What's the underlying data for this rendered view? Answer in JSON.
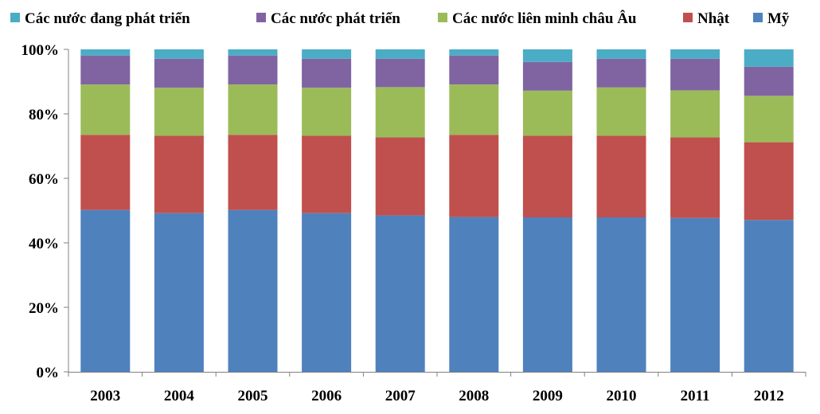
{
  "chart_data": {
    "type": "bar",
    "stacked": true,
    "percent_stacked": true,
    "title": "",
    "xlabel": "",
    "ylabel": "",
    "categories": [
      "2003",
      "2004",
      "2005",
      "2006",
      "2007",
      "2008",
      "2009",
      "2010",
      "2011",
      "2012"
    ],
    "y_ticks": [
      "0%",
      "20%",
      "40%",
      "60%",
      "80%",
      "100%"
    ],
    "ylim": [
      0,
      100
    ],
    "grid": false,
    "legend_position": "top",
    "series": [
      {
        "name": "Mỹ",
        "color": "#4F81BD",
        "values": [
          50.2,
          49.2,
          50.2,
          49.2,
          48.5,
          48.0,
          47.9,
          47.9,
          47.7,
          47.1
        ]
      },
      {
        "name": "Nhật",
        "color": "#C0504D",
        "values": [
          23.3,
          24.0,
          23.3,
          24.0,
          24.2,
          25.5,
          25.3,
          25.3,
          25.0,
          24.1
        ]
      },
      {
        "name": "Các nước liên minh châu Âu",
        "color": "#9BBB59",
        "values": [
          15.6,
          14.9,
          15.6,
          14.9,
          15.6,
          15.6,
          14.0,
          15.0,
          14.6,
          14.4
        ]
      },
      {
        "name": "Các nước phát triển",
        "color": "#8064A2",
        "values": [
          9.0,
          9.0,
          9.0,
          9.0,
          8.8,
          9.0,
          8.9,
          8.9,
          9.8,
          9.0
        ]
      },
      {
        "name": "Các nước đang phát triển",
        "color": "#4BACC6",
        "values": [
          1.9,
          2.9,
          1.9,
          2.9,
          2.9,
          1.9,
          3.9,
          2.9,
          2.9,
          5.4
        ]
      }
    ],
    "legend_order": [
      "Các nước đang phát triển",
      "Các nước phát triển",
      "Các nước liên minh châu Âu",
      "Nhật",
      "Mỹ"
    ]
  }
}
